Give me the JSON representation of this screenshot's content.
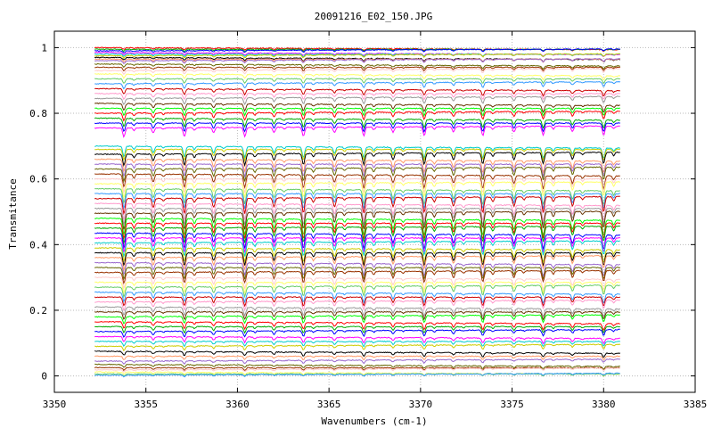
{
  "chart_data": {
    "type": "line",
    "title": "20091216_E02_150.JPG",
    "xlabel": "Wavenumbers (cm-1)",
    "ylabel": "Transmitance",
    "xlim": [
      3350,
      3385
    ],
    "ylim": [
      -0.05,
      1.05
    ],
    "x_ticks": [
      "3350",
      "3355",
      "3360",
      "3365",
      "3370",
      "3375",
      "3380",
      "3385"
    ],
    "x_tick_values": [
      3350,
      3355,
      3360,
      3365,
      3370,
      3375,
      3380,
      3385
    ],
    "y_ticks": [
      "0",
      "0.2",
      "0.4",
      "0.6",
      "0.8",
      "1"
    ],
    "y_tick_values": [
      0,
      0.2,
      0.4,
      0.6,
      0.8,
      1.0
    ],
    "x_range_data": [
      3352.2,
      3380.9
    ],
    "absorption_lines": [
      3353.8,
      3355.4,
      3357.1,
      3358.7,
      3360.4,
      3362.0,
      3363.6,
      3365.3,
      3366.9,
      3368.5,
      3370.2,
      3371.8,
      3373.4,
      3375.1,
      3376.7,
      3378.3,
      3380.0
    ],
    "series_baselines": [
      1.0,
      0.995,
      0.99,
      0.985,
      0.98,
      0.975,
      0.97,
      0.965,
      0.96,
      0.95,
      0.94,
      0.93,
      0.92,
      0.905,
      0.89,
      0.875,
      0.86,
      0.845,
      0.83,
      0.815,
      0.8,
      0.785,
      0.77,
      0.755,
      0.7,
      0.69,
      0.675,
      0.66,
      0.645,
      0.63,
      0.615,
      0.6,
      0.585,
      0.57,
      0.555,
      0.54,
      0.525,
      0.51,
      0.495,
      0.48,
      0.465,
      0.45,
      0.435,
      0.42,
      0.405,
      0.39,
      0.375,
      0.36,
      0.345,
      0.33,
      0.315,
      0.3,
      0.285,
      0.27,
      0.255,
      0.24,
      0.225,
      0.21,
      0.195,
      0.18,
      0.165,
      0.15,
      0.135,
      0.12,
      0.105,
      0.09,
      0.075,
      0.06,
      0.045,
      0.035,
      0.025,
      0.018,
      0.012,
      0.006,
      0.002
    ],
    "grid": true,
    "legend": "none",
    "colors": [
      "#ff0000",
      "#00aa00",
      "#0000ff",
      "#ff00ff",
      "#00cccc",
      "#cccc00",
      "#000000",
      "#ff9966",
      "#9966cc",
      "#666600",
      "#993300",
      "#ffcccc",
      "#ffff66",
      "#66cc66",
      "#3399ff",
      "#cc0000",
      "#ff99cc",
      "#999999",
      "#663300",
      "#00ff00"
    ]
  }
}
